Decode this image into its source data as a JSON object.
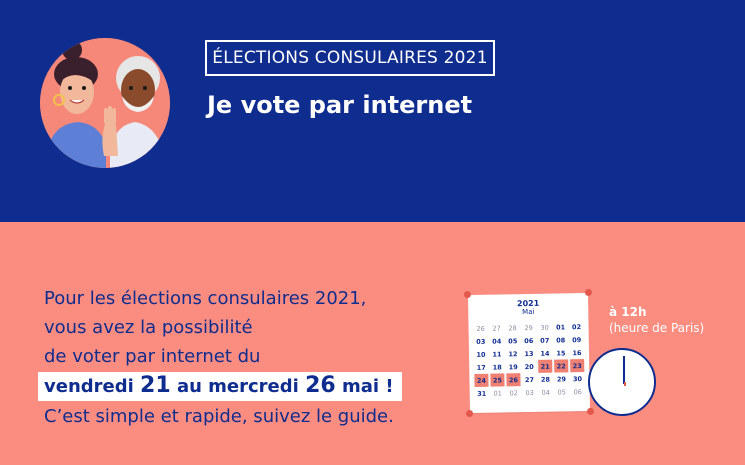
{
  "header": {
    "badge": "ÉLECTIONS CONSULAIRES 2021",
    "title": "Je vote par internet",
    "illustration": "two-voters-illustration"
  },
  "body": {
    "lines": [
      "Pour les élections consulaires 2021,",
      "vous avez la possibilité",
      "de voter par internet du"
    ],
    "highlight": {
      "part1": "vendredi ",
      "day1": "21",
      "part2": " au mercredi ",
      "day2": "26",
      "part3": " mai !"
    },
    "last_line": "C’est simple et rapide, suivez le guide."
  },
  "calendar": {
    "year": "2021",
    "month": "Mai",
    "days": [
      {
        "d": "26",
        "t": "out"
      },
      {
        "d": "27",
        "t": "out"
      },
      {
        "d": "28",
        "t": "out"
      },
      {
        "d": "29",
        "t": "out"
      },
      {
        "d": "30",
        "t": "out"
      },
      {
        "d": "01",
        "t": ""
      },
      {
        "d": "02",
        "t": ""
      },
      {
        "d": "03",
        "t": ""
      },
      {
        "d": "04",
        "t": ""
      },
      {
        "d": "05",
        "t": ""
      },
      {
        "d": "06",
        "t": ""
      },
      {
        "d": "07",
        "t": ""
      },
      {
        "d": "08",
        "t": ""
      },
      {
        "d": "09",
        "t": ""
      },
      {
        "d": "10",
        "t": ""
      },
      {
        "d": "11",
        "t": ""
      },
      {
        "d": "12",
        "t": ""
      },
      {
        "d": "13",
        "t": ""
      },
      {
        "d": "14",
        "t": ""
      },
      {
        "d": "15",
        "t": ""
      },
      {
        "d": "16",
        "t": ""
      },
      {
        "d": "17",
        "t": ""
      },
      {
        "d": "18",
        "t": ""
      },
      {
        "d": "19",
        "t": ""
      },
      {
        "d": "20",
        "t": ""
      },
      {
        "d": "21",
        "t": "vote"
      },
      {
        "d": "22",
        "t": "vote"
      },
      {
        "d": "23",
        "t": "vote"
      },
      {
        "d": "24",
        "t": "vote"
      },
      {
        "d": "25",
        "t": "vote"
      },
      {
        "d": "26",
        "t": "vote"
      },
      {
        "d": "27",
        "t": ""
      },
      {
        "d": "28",
        "t": ""
      },
      {
        "d": "29",
        "t": ""
      },
      {
        "d": "30",
        "t": ""
      },
      {
        "d": "31",
        "t": ""
      },
      {
        "d": "01",
        "t": "out"
      },
      {
        "d": "02",
        "t": "out"
      },
      {
        "d": "03",
        "t": "out"
      },
      {
        "d": "04",
        "t": "out"
      },
      {
        "d": "05",
        "t": "out"
      },
      {
        "d": "06",
        "t": "out"
      }
    ]
  },
  "time": {
    "hour": "à 12h",
    "note": "(heure de Paris)"
  },
  "colors": {
    "navy": "#0f2c8f",
    "coral": "#fa8c80",
    "highlight_day": "#f08072"
  }
}
